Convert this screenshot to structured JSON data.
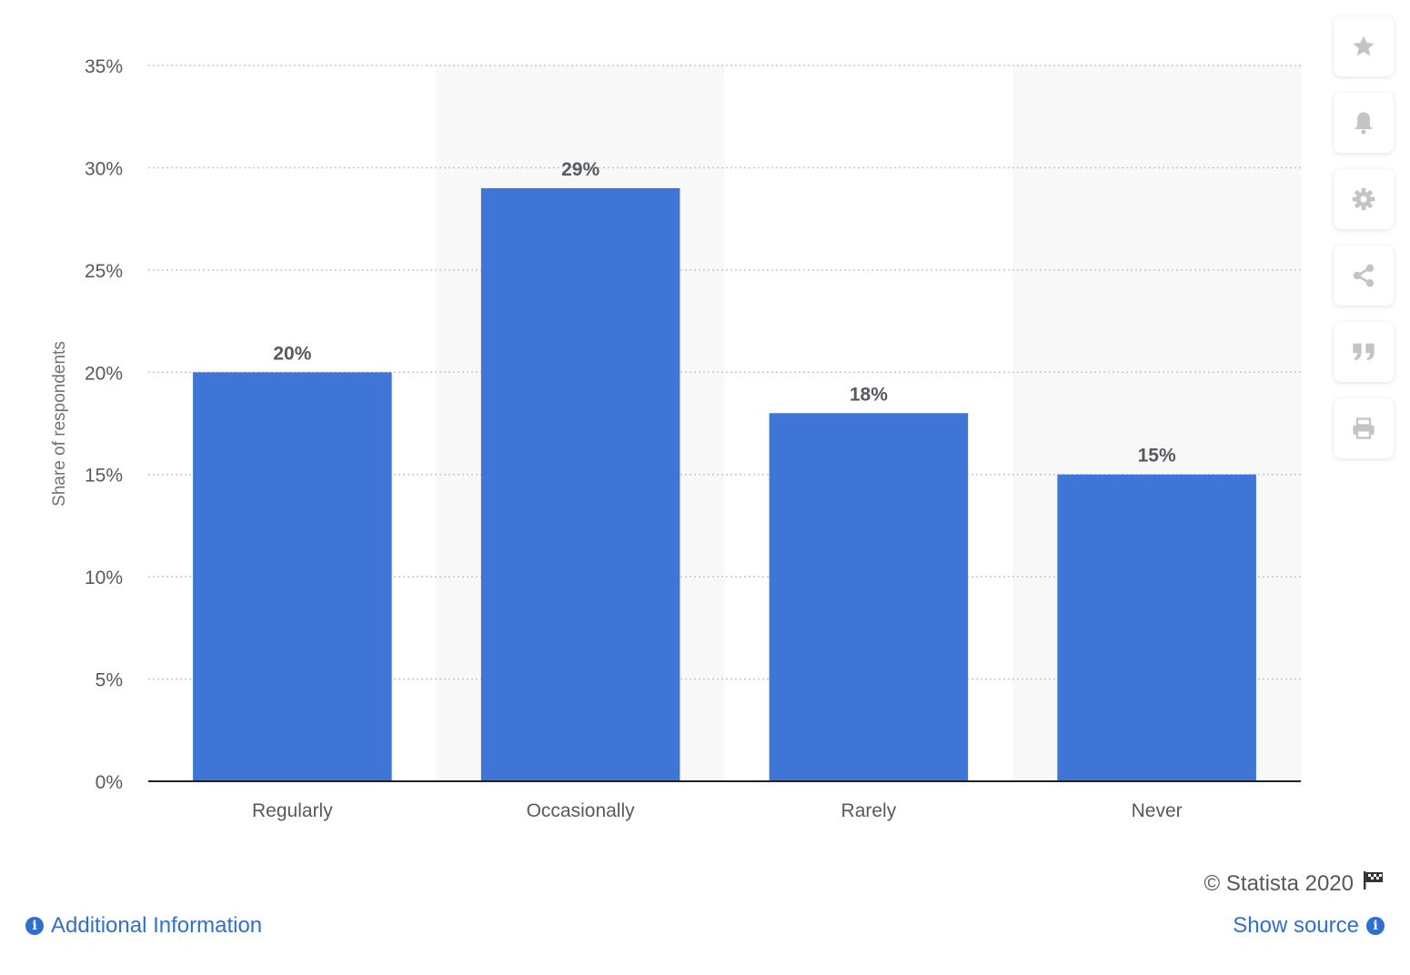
{
  "chart_data": {
    "type": "bar",
    "categories": [
      "Regularly",
      "Occasionally",
      "Rarely",
      "Never"
    ],
    "values": [
      20,
      29,
      18,
      15
    ],
    "data_labels": [
      "20%",
      "29%",
      "18%",
      "15%"
    ],
    "title": "",
    "xlabel": "",
    "ylabel": "Share of respondents",
    "ylim": [
      0,
      35
    ],
    "yticks": [
      0,
      5,
      10,
      15,
      20,
      25,
      30,
      35
    ],
    "ytick_labels": [
      "0%",
      "5%",
      "10%",
      "15%",
      "20%",
      "25%",
      "30%",
      "35%"
    ],
    "grid": true,
    "grid_style": "dotted",
    "alternating_column_bands": true,
    "bar_color": "#3e75d6",
    "legend": "none"
  },
  "sidebar": {
    "buttons": [
      {
        "icon": "star-icon"
      },
      {
        "icon": "bell-icon"
      },
      {
        "icon": "gear-icon"
      },
      {
        "icon": "share-icon"
      },
      {
        "icon": "quote-icon"
      },
      {
        "icon": "print-icon"
      }
    ]
  },
  "footer": {
    "copyright": "© Statista 2020",
    "additional_info": "Additional Information",
    "show_source": "Show source",
    "info_glyph": "i"
  },
  "colors": {
    "bar": "#3e75d6",
    "link": "#2f6fd1",
    "axis_text": "#555a60",
    "band": "#f8f8f8",
    "grid": "#c8c8c8",
    "icon": "#c4c4c4"
  }
}
